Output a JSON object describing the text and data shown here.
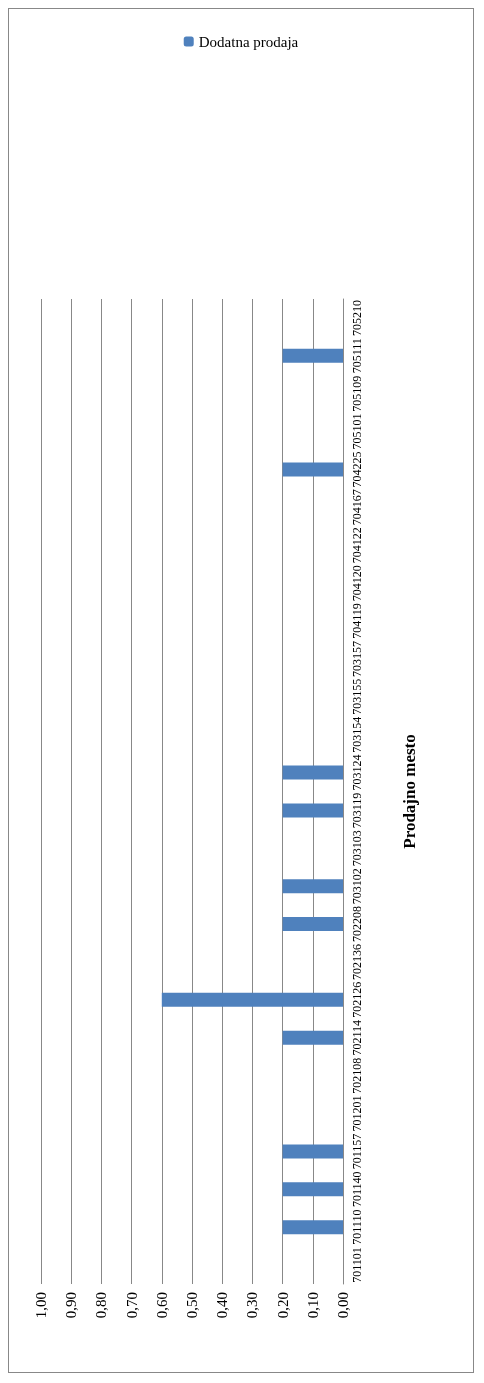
{
  "chart_data": {
    "type": "bar",
    "orientation": "horizontal",
    "ylabel": "Prodajno mesto",
    "categories": [
      "705210",
      "705111",
      "705109",
      "705101",
      "704225",
      "704167",
      "704122",
      "704120",
      "704119",
      "703157",
      "703155",
      "703154",
      "703124",
      "703119",
      "703103",
      "703102",
      "702208",
      "702136",
      "702126",
      "702114",
      "702108",
      "701201",
      "701157",
      "701140",
      "701110",
      "701101"
    ],
    "series": [
      {
        "name": "Dodatna prodaja",
        "color": "#4f81bd",
        "values": [
          0,
          0.2,
          0,
          0,
          0.2,
          0,
          0,
          0,
          0,
          0,
          0,
          0,
          0.2,
          0.2,
          0,
          0.2,
          0.2,
          0,
          0.6,
          0.2,
          0,
          0,
          0.2,
          0.2,
          0.2,
          0
        ]
      }
    ],
    "xlim": [
      1,
      0
    ],
    "xticks": [
      {
        "value": 0,
        "label": "0,00"
      },
      {
        "value": 0.1,
        "label": "0,10"
      },
      {
        "value": 0.2,
        "label": "0,20"
      },
      {
        "value": 0.3,
        "label": "0,30"
      },
      {
        "value": 0.4,
        "label": "0,40"
      },
      {
        "value": 0.5,
        "label": "0,50"
      },
      {
        "value": 0.6,
        "label": "0,60"
      },
      {
        "value": 0.7,
        "label": "0,70"
      },
      {
        "value": 0.8,
        "label": "0,80"
      },
      {
        "value": 0.9,
        "label": "0,90"
      },
      {
        "value": 1,
        "label": "1,00"
      }
    ],
    "grid": "x",
    "legend": "top"
  }
}
